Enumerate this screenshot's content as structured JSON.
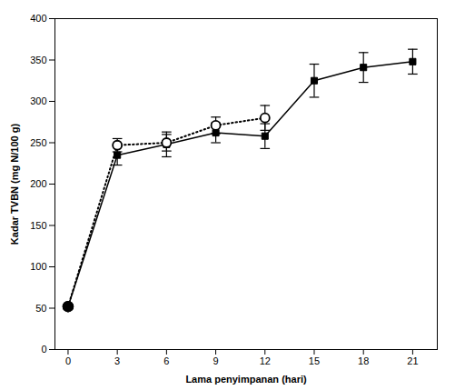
{
  "chart_data": {
    "type": "line",
    "xlabel": "Lama penyimpanan (hari)",
    "ylabel": "Kadar TVBN (mg N/100 g)",
    "x": [
      0,
      3,
      6,
      9,
      12,
      15,
      18,
      21
    ],
    "series": [
      {
        "color": "#000000",
        "marker": "square",
        "line_style": "solid",
        "values": [
          52,
          235,
          248,
          262,
          258,
          325,
          341,
          348
        ],
        "yerr": [
          0,
          12,
          15,
          12,
          15,
          20,
          18,
          15
        ]
      },
      {
        "color": "#000000",
        "marker": "circle_open",
        "line_style": "dotted",
        "values": [
          52,
          247,
          250,
          271,
          280,
          null,
          null,
          null
        ],
        "yerr": [
          0,
          8,
          10,
          10,
          15,
          null,
          null,
          null
        ]
      }
    ],
    "xlim": [
      -0.8,
      22.5
    ],
    "xticks": [
      0,
      3,
      6,
      9,
      12,
      15,
      18,
      21
    ],
    "ylim": [
      0,
      400
    ],
    "yticks": [
      0,
      50,
      100,
      150,
      200,
      250,
      300,
      350,
      400
    ],
    "grid": false
  }
}
